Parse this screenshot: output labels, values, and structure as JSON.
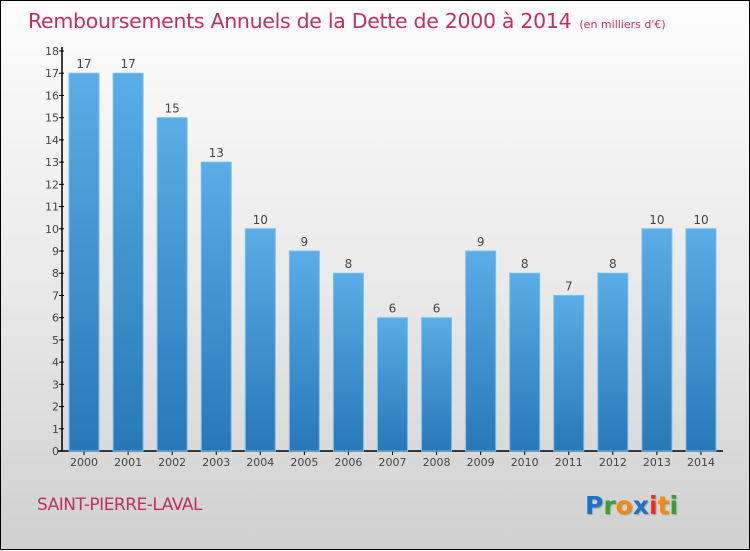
{
  "chart_data": {
    "type": "bar",
    "title": "Remboursements Annuels de la Dette de 2000 à 2014",
    "subtitle": "(en milliers d'€)",
    "xlabel": "",
    "ylabel": "",
    "categories": [
      "2000",
      "2001",
      "2002",
      "2003",
      "2004",
      "2005",
      "2006",
      "2007",
      "2008",
      "2009",
      "2010",
      "2011",
      "2012",
      "2013",
      "2014"
    ],
    "values": [
      17,
      17,
      15,
      13,
      10,
      9,
      8,
      6,
      6,
      9,
      8,
      7,
      8,
      10,
      10
    ],
    "data_labels": [
      "17",
      "17",
      "15",
      "13",
      "10",
      "9",
      "8",
      "6",
      "6",
      "9",
      "8",
      "7",
      "8",
      "10",
      "10"
    ],
    "ylim": [
      0,
      18
    ],
    "yticks": [
      0,
      1,
      2,
      3,
      4,
      5,
      6,
      7,
      8,
      9,
      10,
      11,
      12,
      13,
      14,
      15,
      16,
      17,
      18
    ],
    "grid": false,
    "legend": "none",
    "bar_color_top": "#5aade6",
    "bar_color_bottom": "#2878b8"
  },
  "footer": {
    "town": "SAINT-PIERRE-LAVAL",
    "logo_letters": [
      {
        "char": "P",
        "color": "#1a73c8"
      },
      {
        "char": "r",
        "color": "#3aa030"
      },
      {
        "char": "o",
        "color": "#f08a10"
      },
      {
        "char": "x",
        "color": "#1a73c8"
      },
      {
        "char": "i",
        "color": "#e83020"
      },
      {
        "char": "t",
        "color": "#f08a10"
      },
      {
        "char": "i",
        "color": "#3aa030"
      }
    ]
  },
  "colors": {
    "title": "#c0305f",
    "text": "#444444"
  }
}
